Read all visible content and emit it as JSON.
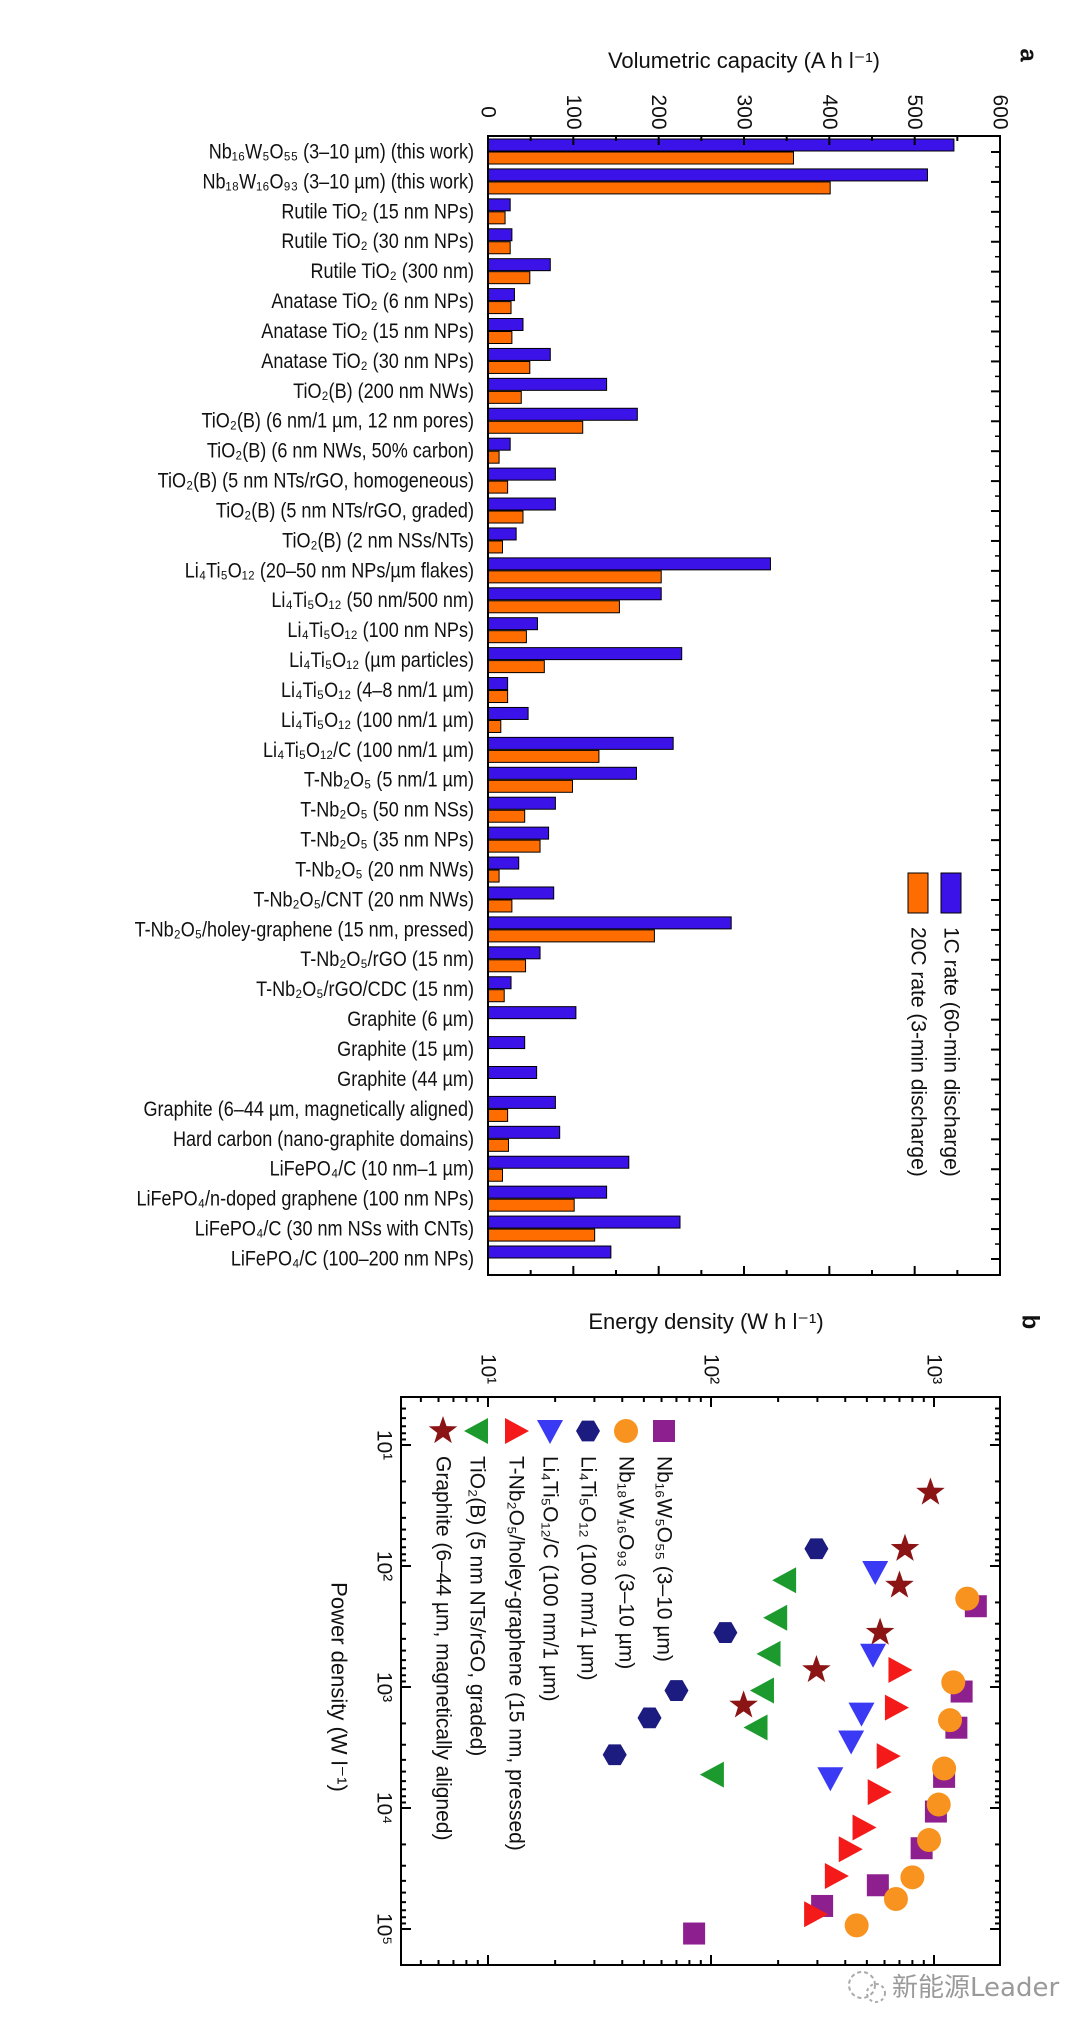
{
  "chart_data": [
    {
      "type": "bar",
      "orientation": "horizontal",
      "panel_label": "a",
      "xlabel": "Volumetric capacity (A h l⁻¹)",
      "xlim": [
        0,
        600
      ],
      "xticks": [
        "0",
        "100",
        "200",
        "300",
        "400",
        "500",
        "600"
      ],
      "legend": "right",
      "categories": [
        "Nb₁₆W₅O₅₅ (3–10 µm) (this work)",
        "Nb₁₈W₁₆O₉₃ (3–10 µm) (this work)",
        "Rutile TiO₂ (15 nm NPs)",
        "Rutile TiO₂ (30 nm NPs)",
        "Rutile TiO₂ (300 nm)",
        "Anatase TiO₂ (6 nm NPs)",
        "Anatase TiO₂ (15 nm NPs)",
        "Anatase TiO₂ (30 nm NPs)",
        "TiO₂(B) (200 nm NWs)",
        "TiO₂(B) (6 nm/1 µm, 12 nm pores)",
        "TiO₂(B) (6 nm NWs, 50% carbon)",
        "TiO₂(B) (5 nm NTs/rGO, homogeneous)",
        "TiO₂(B) (5 nm NTs/rGO, graded)",
        "TiO₂(B) (2 nm NSs/NTs)",
        "Li₄Ti₅O₁₂ (20–50 nm NPs/µm flakes)",
        "Li₄Ti₅O₁₂ (50 nm/500 nm)",
        "Li₄Ti₅O₁₂ (100 nm NPs)",
        "Li₄Ti₅O₁₂ (µm particles)",
        "Li₄Ti₅O₁₂ (4–8 nm/1 µm)",
        "Li₄Ti₅O₁₂ (100 nm/1 µm)",
        "Li₄Ti₅O₁₂/C (100 nm/1 µm)",
        "T-Nb₂O₅ (5 nm/1 µm)",
        "T-Nb₂O₅ (50 nm NSs)",
        "T-Nb₂O₅ (35 nm NPs)",
        "T-Nb₂O₅ (20 nm NWs)",
        "T-Nb₂O₅/CNT (20 nm NWs)",
        "T-Nb₂O₅/holey-graphene (15 nm, pressed)",
        "T-Nb₂O₅/rGO (15 nm)",
        "T-Nb₂O₅/rGO/CDC (15 nm)",
        "Graphite (6 µm)",
        "Graphite (15 µm)",
        "Graphite (44 µm)",
        "Graphite (6–44 µm, magnetically aligned)",
        "Hard carbon (nano-graphite domains)",
        "LiFePO₄/C (10 nm–1 µm)",
        "LiFePO₄/n-doped graphene (100 nm NPs)",
        "LiFePO₄/C (30 nm NSs with CNTs)",
        "LiFePO₄/C (100–200 nm NPs)"
      ],
      "series": [
        {
          "name": "1C rate (60-min discharge)",
          "color": "#3b12e8",
          "values": [
            546,
            515,
            26,
            28,
            73,
            31,
            41,
            73,
            139,
            175,
            26,
            79,
            79,
            33,
            331,
            203,
            58,
            227,
            23,
            47,
            217,
            174,
            79,
            71,
            36,
            77,
            285,
            61,
            27,
            103,
            43,
            57,
            79,
            84,
            165,
            139,
            225,
            144
          ]
        },
        {
          "name": "20C rate (3-min discharge)",
          "color": "#ff6d00",
          "values": [
            358,
            401,
            20,
            26,
            49,
            27,
            28,
            49,
            39,
            111,
            13,
            23,
            41,
            17,
            203,
            154,
            45,
            66,
            23,
            15,
            130,
            99,
            43,
            61,
            13,
            28,
            195,
            44,
            19,
            null,
            null,
            null,
            23,
            24,
            17,
            101,
            125,
            null
          ]
        }
      ]
    },
    {
      "type": "scatter",
      "panel_label": "b",
      "xlabel": "Power density (W l⁻¹)",
      "ylabel": "Energy density (W h l⁻¹)",
      "xscale": "log",
      "yscale": "log",
      "xlim": [
        4,
        200000
      ],
      "ylim": [
        4.1,
        1980
      ],
      "xticks": [
        "10¹",
        "10²",
        "10³",
        "10⁴",
        "10⁵"
      ],
      "yticks": [
        "10¹",
        "10²",
        "10³"
      ],
      "legend": "top-left",
      "series": [
        {
          "name": "Nb₁₆W₅O₅₅ (3–10 µm)",
          "marker": "square",
          "color": "#8e1f8e",
          "points": [
            [
              215,
              1540
            ],
            [
              1090,
              1330
            ],
            [
              2170,
              1260
            ],
            [
              5530,
              1110
            ],
            [
              10700,
              1020
            ],
            [
              21500,
              880
            ],
            [
              43500,
              560
            ],
            [
              64500,
              315
            ],
            [
              109000,
              84
            ]
          ]
        },
        {
          "name": "Nb₁₈W₁₆O₉₃ (3–10 µm)",
          "marker": "circle",
          "color": "#f7931e",
          "points": [
            [
              186,
              1410
            ],
            [
              916,
              1220
            ],
            [
              1880,
              1180
            ],
            [
              4720,
              1110
            ],
            [
              9360,
              1050
            ],
            [
              18400,
              950
            ],
            [
              37400,
              800
            ],
            [
              56500,
              675
            ],
            [
              93300,
              450
            ]
          ]
        },
        {
          "name": "Li₄Ti₅O₁₂ (100 nm/1 µm)",
          "marker": "hexagon",
          "color": "#1c1c80",
          "points": [
            [
              72,
              297
            ],
            [
              355,
              116
            ],
            [
              1070,
              70
            ],
            [
              1800,
              53
            ],
            [
              3630,
              37
            ]
          ]
        },
        {
          "name": "Li₄Ti₅O₁₂/C (100 nm/1 µm)",
          "marker": "triangle-down",
          "color": "#3a3af5",
          "points": [
            [
              112,
              545
            ],
            [
              541,
              533
            ],
            [
              1660,
              473
            ],
            [
              2820,
              425
            ],
            [
              5680,
              343
            ]
          ]
        },
        {
          "name": "T-Nb₂O₅/holey-graphene (15 nm, pressed)",
          "marker": "triangle-right",
          "color": "#f51a1a",
          "points": [
            [
              723,
              700
            ],
            [
              1480,
              675
            ],
            [
              3730,
              620
            ],
            [
              7390,
              565
            ],
            [
              14500,
              483
            ],
            [
              21900,
              419
            ],
            [
              36500,
              363
            ],
            [
              75500,
              293
            ]
          ]
        },
        {
          "name": "TiO₂(B) (5 nm NTs/rGO, graded)",
          "marker": "triangle-left",
          "color": "#1d9a2e",
          "points": [
            [
              131,
              215
            ],
            [
              268,
              196
            ],
            [
              532,
              183
            ],
            [
              1070,
              171
            ],
            [
              2160,
              160
            ],
            [
              5300,
              102
            ]
          ]
        },
        {
          "name": "Graphite (6–44 µm, magnetically aligned)",
          "marker": "star",
          "color": "#8b1414",
          "points": [
            [
              24.7,
              964
            ],
            [
              72,
              741
            ],
            [
              145,
              700
            ],
            [
              355,
              573
            ],
            [
              723,
              297
            ],
            [
              1420,
              140
            ]
          ]
        }
      ]
    }
  ],
  "watermark": "新能源Leader"
}
